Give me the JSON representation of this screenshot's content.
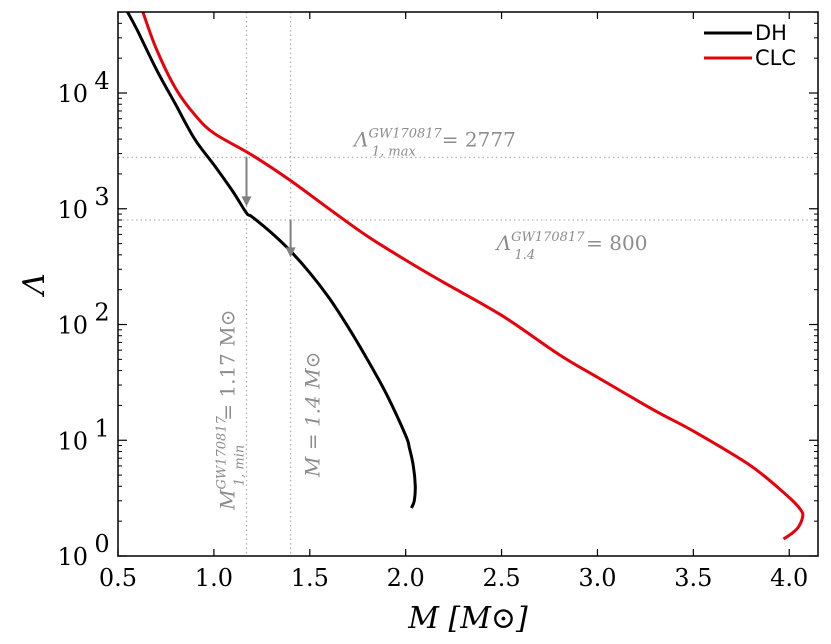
{
  "chart_data": {
    "type": "line",
    "xlabel": "M [M⊙]",
    "ylabel": "Λ",
    "xlim": [
      0.5,
      4.15
    ],
    "ylim_log10": [
      0,
      4.7
    ],
    "xticks": [
      0.5,
      1.0,
      1.5,
      2.0,
      2.5,
      3.0,
      3.5,
      4.0
    ],
    "xtick_labels": [
      "0.5",
      "1.0",
      "1.5",
      "2.0",
      "2.5",
      "3.0",
      "3.5",
      "4.0"
    ],
    "ytick_exponents": [
      0,
      1,
      2,
      3,
      4
    ],
    "ytick_base": "10",
    "yscale": "log",
    "series": [
      {
        "name": "DH",
        "color": "#000000",
        "points": [
          [
            2.03,
            2.6
          ],
          [
            2.045,
            3.0
          ],
          [
            2.05,
            4.0
          ],
          [
            2.04,
            6.0
          ],
          [
            2.02,
            8.5
          ],
          [
            2.0,
            11
          ],
          [
            1.9,
            25
          ],
          [
            1.8,
            50
          ],
          [
            1.7,
            95
          ],
          [
            1.6,
            170
          ],
          [
            1.5,
            280
          ],
          [
            1.4,
            430
          ],
          [
            1.3,
            620
          ],
          [
            1.2,
            850
          ],
          [
            1.17,
            920
          ],
          [
            1.1,
            1400
          ],
          [
            1.0,
            2400
          ],
          [
            0.9,
            4000
          ],
          [
            0.8,
            8000
          ],
          [
            0.7,
            16000
          ],
          [
            0.6,
            35000
          ],
          [
            0.55,
            50000
          ]
        ]
      },
      {
        "name": "CLC",
        "color": "#e8000b",
        "points": [
          [
            3.97,
            1.4
          ],
          [
            4.02,
            1.6
          ],
          [
            4.05,
            1.8
          ],
          [
            4.07,
            2.2
          ],
          [
            4.06,
            2.5
          ],
          [
            4.0,
            3.2
          ],
          [
            3.8,
            6.0
          ],
          [
            3.5,
            12
          ],
          [
            3.3,
            18
          ],
          [
            3.0,
            35
          ],
          [
            2.8,
            55
          ],
          [
            2.5,
            120
          ],
          [
            2.2,
            230
          ],
          [
            2.0,
            360
          ],
          [
            1.8,
            580
          ],
          [
            1.6,
            1000
          ],
          [
            1.4,
            1750
          ],
          [
            1.2,
            2900
          ],
          [
            1.0,
            4500
          ],
          [
            0.9,
            6500
          ],
          [
            0.8,
            11000
          ],
          [
            0.7,
            24000
          ],
          [
            0.63,
            50000
          ]
        ]
      }
    ],
    "reference_lines": {
      "horizontal": [
        {
          "value": 2777,
          "label_base": "Λ",
          "label_sub": "1, max",
          "label_sup": "GW170817",
          "label_tail": "= 2777"
        },
        {
          "value": 800,
          "label_base": "Λ",
          "label_sub": "1.4",
          "label_sup": "GW170817",
          "label_tail": "= 800"
        }
      ],
      "vertical": [
        {
          "value": 1.17,
          "label_base": "M",
          "label_sub": "1, min",
          "label_sup": "GW170817",
          "label_tail": "= 1.17 M⊙"
        },
        {
          "value": 1.4,
          "label": "M = 1.4 M⊙"
        }
      ]
    },
    "arrows": [
      {
        "x": 1.17,
        "from": 2777,
        "to": 1050
      },
      {
        "x": 1.4,
        "from": 800,
        "to": 380
      }
    ],
    "legend": {
      "position": "top-right",
      "entries": [
        "DH",
        "CLC"
      ]
    }
  }
}
